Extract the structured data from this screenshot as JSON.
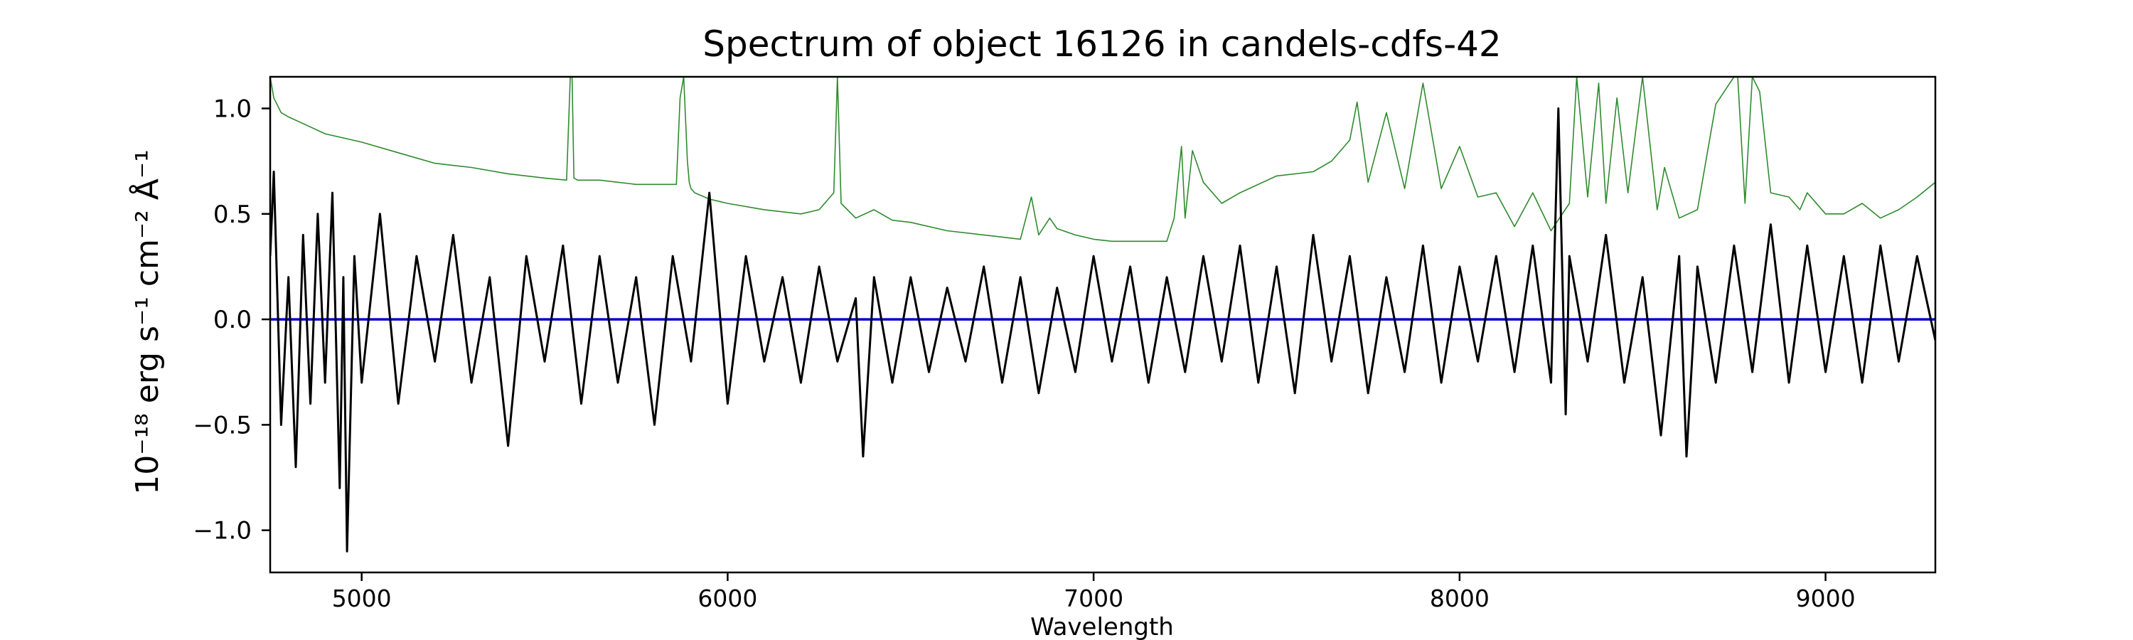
{
  "chart_data": {
    "type": "line",
    "title": "Spectrum of object 16126 in candels-cdfs-42",
    "xlabel": "Wavelength",
    "ylabel": "10⁻¹⁸ erg s⁻¹ cm⁻² Å⁻¹",
    "xlim": [
      4750,
      9300
    ],
    "ylim": [
      -1.2,
      1.15
    ],
    "xticks": [
      5000,
      6000,
      7000,
      8000,
      9000
    ],
    "yticks": [
      -1.0,
      -0.5,
      0.0,
      0.5,
      1.0
    ],
    "xtick_labels": [
      "5000",
      "6000",
      "7000",
      "8000",
      "9000"
    ],
    "ytick_labels": [
      "−1.0",
      "−0.5",
      "0.0",
      "0.5",
      "1.0"
    ],
    "grid": false,
    "series": [
      {
        "color": "#2e8b2e",
        "x": [
          4750,
          4760,
          4780,
          4800,
          4850,
          4900,
          4950,
          5000,
          5100,
          5200,
          5300,
          5400,
          5500,
          5560,
          5570,
          5575,
          5580,
          5590,
          5650,
          5700,
          5750,
          5800,
          5860,
          5870,
          5880,
          5890,
          5895,
          5900,
          5910,
          5950,
          6000,
          6100,
          6200,
          6250,
          6290,
          6300,
          6310,
          6350,
          6400,
          6450,
          6500,
          6600,
          6700,
          6800,
          6830,
          6850,
          6880,
          6900,
          6950,
          7000,
          7050,
          7100,
          7150,
          7200,
          7220,
          7240,
          7250,
          7270,
          7300,
          7350,
          7400,
          7500,
          7600,
          7650,
          7700,
          7720,
          7750,
          7800,
          7850,
          7900,
          7950,
          8000,
          8050,
          8100,
          8150,
          8200,
          8250,
          8300,
          8320,
          8350,
          8380,
          8400,
          8430,
          8460,
          8500,
          8540,
          8560,
          8600,
          8650,
          8700,
          8750,
          8760,
          8780,
          8800,
          8820,
          8850,
          8900,
          8930,
          8950,
          9000,
          9050,
          9100,
          9150,
          9200,
          9250,
          9300
        ],
        "values": [
          1.15,
          1.05,
          0.98,
          0.96,
          0.92,
          0.88,
          0.86,
          0.84,
          0.79,
          0.74,
          0.72,
          0.69,
          0.67,
          0.66,
          1.15,
          1.15,
          0.67,
          0.66,
          0.66,
          0.65,
          0.64,
          0.64,
          0.64,
          1.05,
          1.15,
          0.75,
          0.65,
          0.62,
          0.6,
          0.57,
          0.55,
          0.52,
          0.5,
          0.52,
          0.6,
          1.15,
          0.55,
          0.48,
          0.52,
          0.47,
          0.46,
          0.42,
          0.4,
          0.38,
          0.58,
          0.4,
          0.48,
          0.43,
          0.4,
          0.38,
          0.37,
          0.37,
          0.37,
          0.37,
          0.48,
          0.82,
          0.48,
          0.8,
          0.65,
          0.55,
          0.6,
          0.68,
          0.7,
          0.75,
          0.85,
          1.03,
          0.65,
          0.98,
          0.62,
          1.12,
          0.62,
          0.82,
          0.58,
          0.6,
          0.44,
          0.6,
          0.42,
          0.55,
          1.15,
          0.58,
          1.12,
          0.55,
          1.05,
          0.6,
          1.15,
          0.52,
          0.72,
          0.48,
          0.52,
          1.02,
          1.15,
          1.15,
          0.55,
          1.15,
          1.08,
          0.6,
          0.58,
          0.52,
          0.6,
          0.5,
          0.5,
          0.55,
          0.48,
          0.52,
          0.58,
          0.65
        ]
      },
      {
        "color": "#0000cc",
        "x": [
          4750,
          9300
        ],
        "values": [
          0.0,
          0.0
        ]
      },
      {
        "color": "#000000",
        "x": [
          4750,
          4760,
          4780,
          4800,
          4820,
          4840,
          4860,
          4880,
          4900,
          4920,
          4940,
          4950,
          4960,
          4980,
          5000,
          5050,
          5100,
          5150,
          5200,
          5250,
          5300,
          5350,
          5400,
          5450,
          5500,
          5550,
          5600,
          5650,
          5700,
          5750,
          5800,
          5850,
          5900,
          5950,
          6000,
          6050,
          6100,
          6150,
          6200,
          6250,
          6300,
          6350,
          6370,
          6400,
          6450,
          6500,
          6550,
          6600,
          6650,
          6700,
          6750,
          6800,
          6850,
          6900,
          6950,
          7000,
          7050,
          7100,
          7150,
          7200,
          7250,
          7300,
          7350,
          7400,
          7450,
          7500,
          7550,
          7600,
          7650,
          7700,
          7750,
          7800,
          7850,
          7900,
          7950,
          8000,
          8050,
          8100,
          8150,
          8200,
          8250,
          8270,
          8290,
          8300,
          8350,
          8400,
          8450,
          8500,
          8550,
          8600,
          8620,
          8650,
          8700,
          8750,
          8800,
          8850,
          8900,
          8950,
          9000,
          9050,
          9100,
          9150,
          9200,
          9250,
          9300
        ],
        "values": [
          0.3,
          0.7,
          -0.5,
          0.2,
          -0.7,
          0.4,
          -0.4,
          0.5,
          -0.3,
          0.6,
          -0.8,
          0.2,
          -1.1,
          0.3,
          -0.3,
          0.5,
          -0.4,
          0.3,
          -0.2,
          0.4,
          -0.3,
          0.2,
          -0.6,
          0.3,
          -0.2,
          0.35,
          -0.4,
          0.3,
          -0.3,
          0.2,
          -0.5,
          0.3,
          -0.2,
          0.6,
          -0.4,
          0.3,
          -0.2,
          0.2,
          -0.3,
          0.25,
          -0.2,
          0.1,
          -0.65,
          0.2,
          -0.3,
          0.2,
          -0.25,
          0.15,
          -0.2,
          0.25,
          -0.3,
          0.2,
          -0.35,
          0.15,
          -0.25,
          0.3,
          -0.2,
          0.25,
          -0.3,
          0.2,
          -0.25,
          0.3,
          -0.2,
          0.35,
          -0.3,
          0.25,
          -0.35,
          0.4,
          -0.2,
          0.3,
          -0.35,
          0.2,
          -0.25,
          0.35,
          -0.3,
          0.25,
          -0.2,
          0.3,
          -0.25,
          0.35,
          -0.3,
          1.0,
          -0.45,
          0.3,
          -0.2,
          0.4,
          -0.3,
          0.2,
          -0.55,
          0.3,
          -0.65,
          0.25,
          -0.3,
          0.35,
          -0.25,
          0.45,
          -0.3,
          0.35,
          -0.25,
          0.3,
          -0.3,
          0.35,
          -0.2,
          0.3,
          -0.1
        ]
      }
    ]
  }
}
